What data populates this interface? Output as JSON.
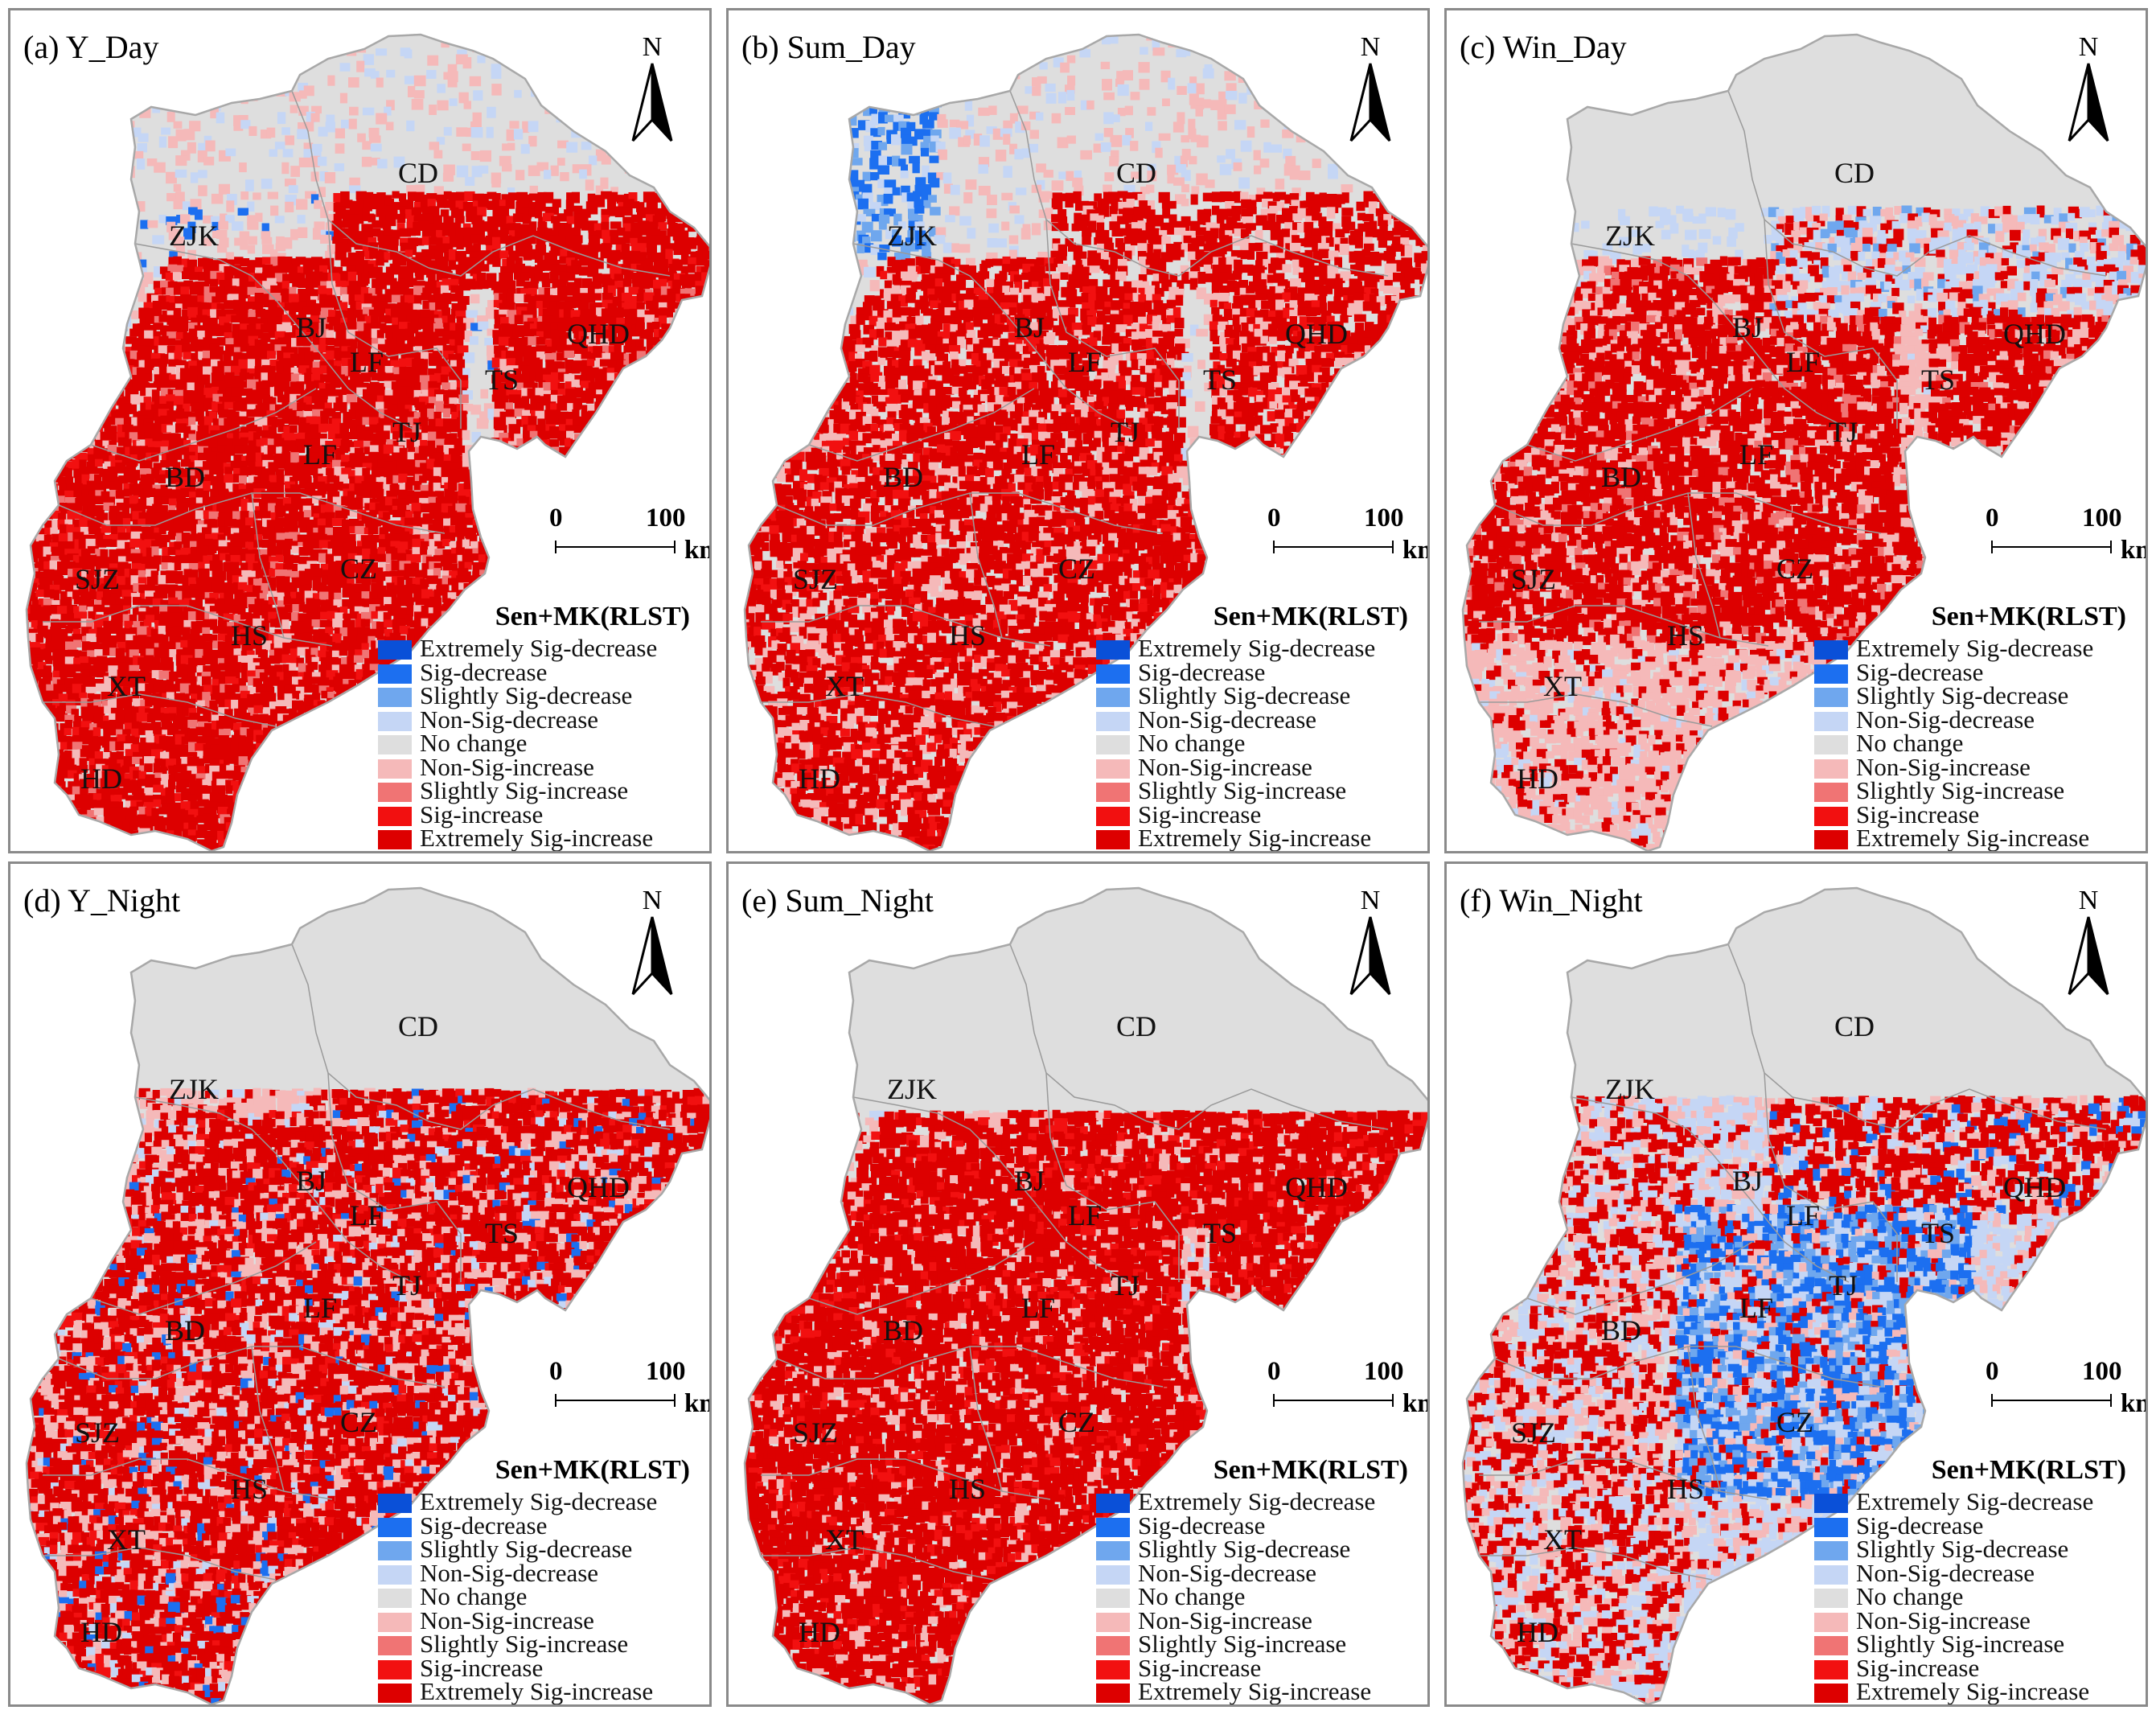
{
  "figure": {
    "north_label": "N",
    "scale_zero": "0",
    "scale_max": "100",
    "scale_unit": "km",
    "legend_title": "Sen+MK(RLST)",
    "legend": [
      {
        "label": "Extremely Sig-decrease",
        "color": "#0a50d8"
      },
      {
        "label": "Sig-decrease",
        "color": "#1c6ff0"
      },
      {
        "label": "Slightly Sig-decrease",
        "color": "#6fa7ee"
      },
      {
        "label": "Non-Sig-decrease",
        "color": "#c5d6f5"
      },
      {
        "label": "No change",
        "color": "#dedede"
      },
      {
        "label": "Non-Sig-increase",
        "color": "#f5b9b9"
      },
      {
        "label": "Slightly Sig-increase",
        "color": "#f07474"
      },
      {
        "label": "Sig-increase",
        "color": "#f21010"
      },
      {
        "label": "Extremely Sig-increase",
        "color": "#dd0000"
      }
    ]
  },
  "panels": [
    {
      "title": "(a) Y_Day",
      "pattern": "day_year",
      "cities": {
        "CD": "CD",
        "ZJK": "ZJK",
        "BJ": "BJ",
        "LF1": "LF",
        "QHD": "QHD",
        "TS": "TS",
        "TJ": "TJ",
        "LF2": "LF",
        "BD": "BD",
        "SJZ": "SJZ",
        "CZ": "CZ",
        "HS": "HS",
        "XT": "XT",
        "HD": "HD"
      }
    },
    {
      "title": "(b) Sum_Day",
      "pattern": "day_summer",
      "cities": {
        "CD": "CD",
        "ZJK": "ZJK",
        "BJ": "BJ",
        "LF1": "LF",
        "QHD": "QHD",
        "TS": "TS",
        "TJ": "TJ",
        "LF2": "LF",
        "BD": "BD",
        "SJZ": "SJZ",
        "CZ": "CZ",
        "HS": "HS",
        "XT": "XT",
        "HD": "HD"
      }
    },
    {
      "title": "(c) Win_Day",
      "pattern": "day_winter",
      "cities": {
        "CD": "CD",
        "ZJK": "ZJK",
        "BJ": "BJ",
        "LF1": "LF",
        "QHD": "QHD",
        "TS": "TS",
        "TJ": "TJ",
        "LF2": "LF",
        "BD": "BD",
        "SJZ": "SJZ",
        "CZ": "CZ",
        "HS": "HS",
        "XT": "XT",
        "HD": "HD"
      }
    },
    {
      "title": "(d) Y_Night",
      "pattern": "night_year",
      "cities": {
        "CD": "CD",
        "ZJK": "ZJK",
        "BJ": "BJ",
        "LF1": "LF",
        "QHD": "QHD",
        "TS": "TS",
        "TJ": "TJ",
        "LF2": "LF",
        "BD": "BD",
        "SJZ": "SJZ",
        "CZ": "CZ",
        "HS": "HS",
        "XT": "XT",
        "HD": "HD"
      }
    },
    {
      "title": "(e) Sum_Night",
      "pattern": "night_summer",
      "cities": {
        "CD": "CD",
        "ZJK": "ZJK",
        "BJ": "BJ",
        "LF1": "LF",
        "QHD": "QHD",
        "TS": "TS",
        "TJ": "TJ",
        "LF2": "LF",
        "BD": "BD",
        "SJZ": "SJZ",
        "CZ": "CZ",
        "HS": "HS",
        "XT": "XT",
        "HD": "HD"
      }
    },
    {
      "title": "(f) Win_Night",
      "pattern": "night_winter",
      "cities": {
        "CD": "CD",
        "ZJK": "ZJK",
        "BJ": "BJ",
        "LF1": "LF",
        "QHD": "QHD",
        "TS": "TS",
        "TJ": "TJ",
        "LF2": "LF",
        "BD": "BD",
        "SJZ": "SJZ",
        "CZ": "CZ",
        "HS": "HS",
        "XT": "XT",
        "HD": "HD"
      }
    }
  ]
}
